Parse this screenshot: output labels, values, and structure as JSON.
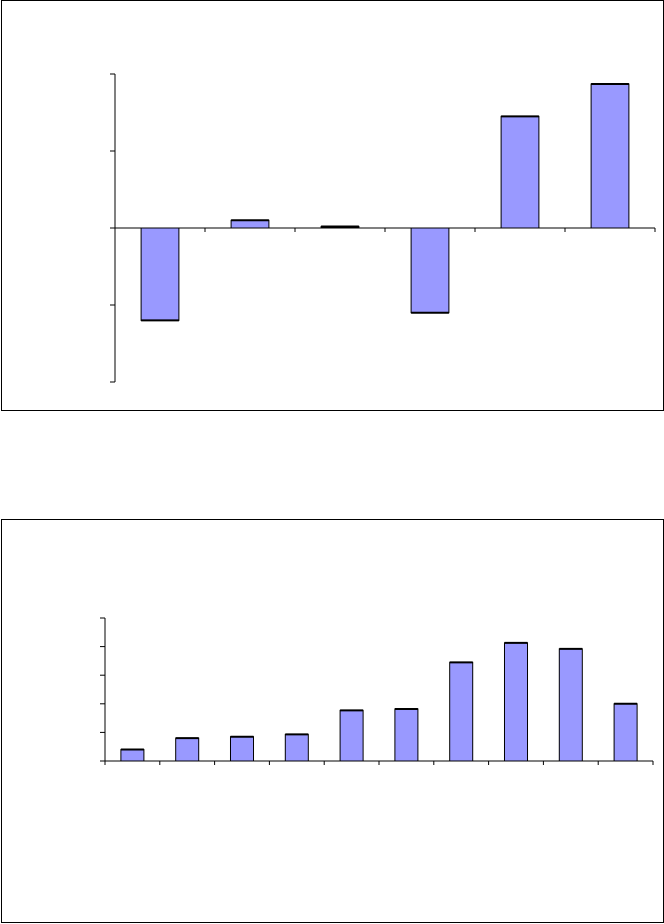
{
  "style": {
    "bar_fill": "#9999ff",
    "bar_stroke": "#000000",
    "axis_color": "#000000"
  },
  "chart_data": [
    {
      "type": "bar",
      "title": "",
      "xlabel": "",
      "ylabel": "",
      "categories": [
        "",
        "",
        "",
        "",
        "",
        ""
      ],
      "values": [
        -1.2,
        0.1,
        0.02,
        -1.1,
        1.45,
        1.87
      ],
      "ylim": [
        -2,
        2
      ],
      "y_ticks": [
        -2,
        -1,
        0,
        1,
        2
      ],
      "grid": false,
      "legend": "none"
    },
    {
      "type": "bar",
      "title": "",
      "xlabel": "",
      "ylabel": "",
      "categories": [
        "",
        "",
        "",
        "",
        "",
        "",
        "",
        "",
        "",
        ""
      ],
      "values": [
        0.4,
        0.8,
        0.85,
        0.93,
        1.77,
        1.82,
        3.45,
        4.13,
        3.92,
        2.0
      ],
      "ylim": [
        0,
        5
      ],
      "y_ticks": [
        0,
        1,
        2,
        3,
        4,
        5
      ],
      "grid": false,
      "legend": "none"
    }
  ]
}
